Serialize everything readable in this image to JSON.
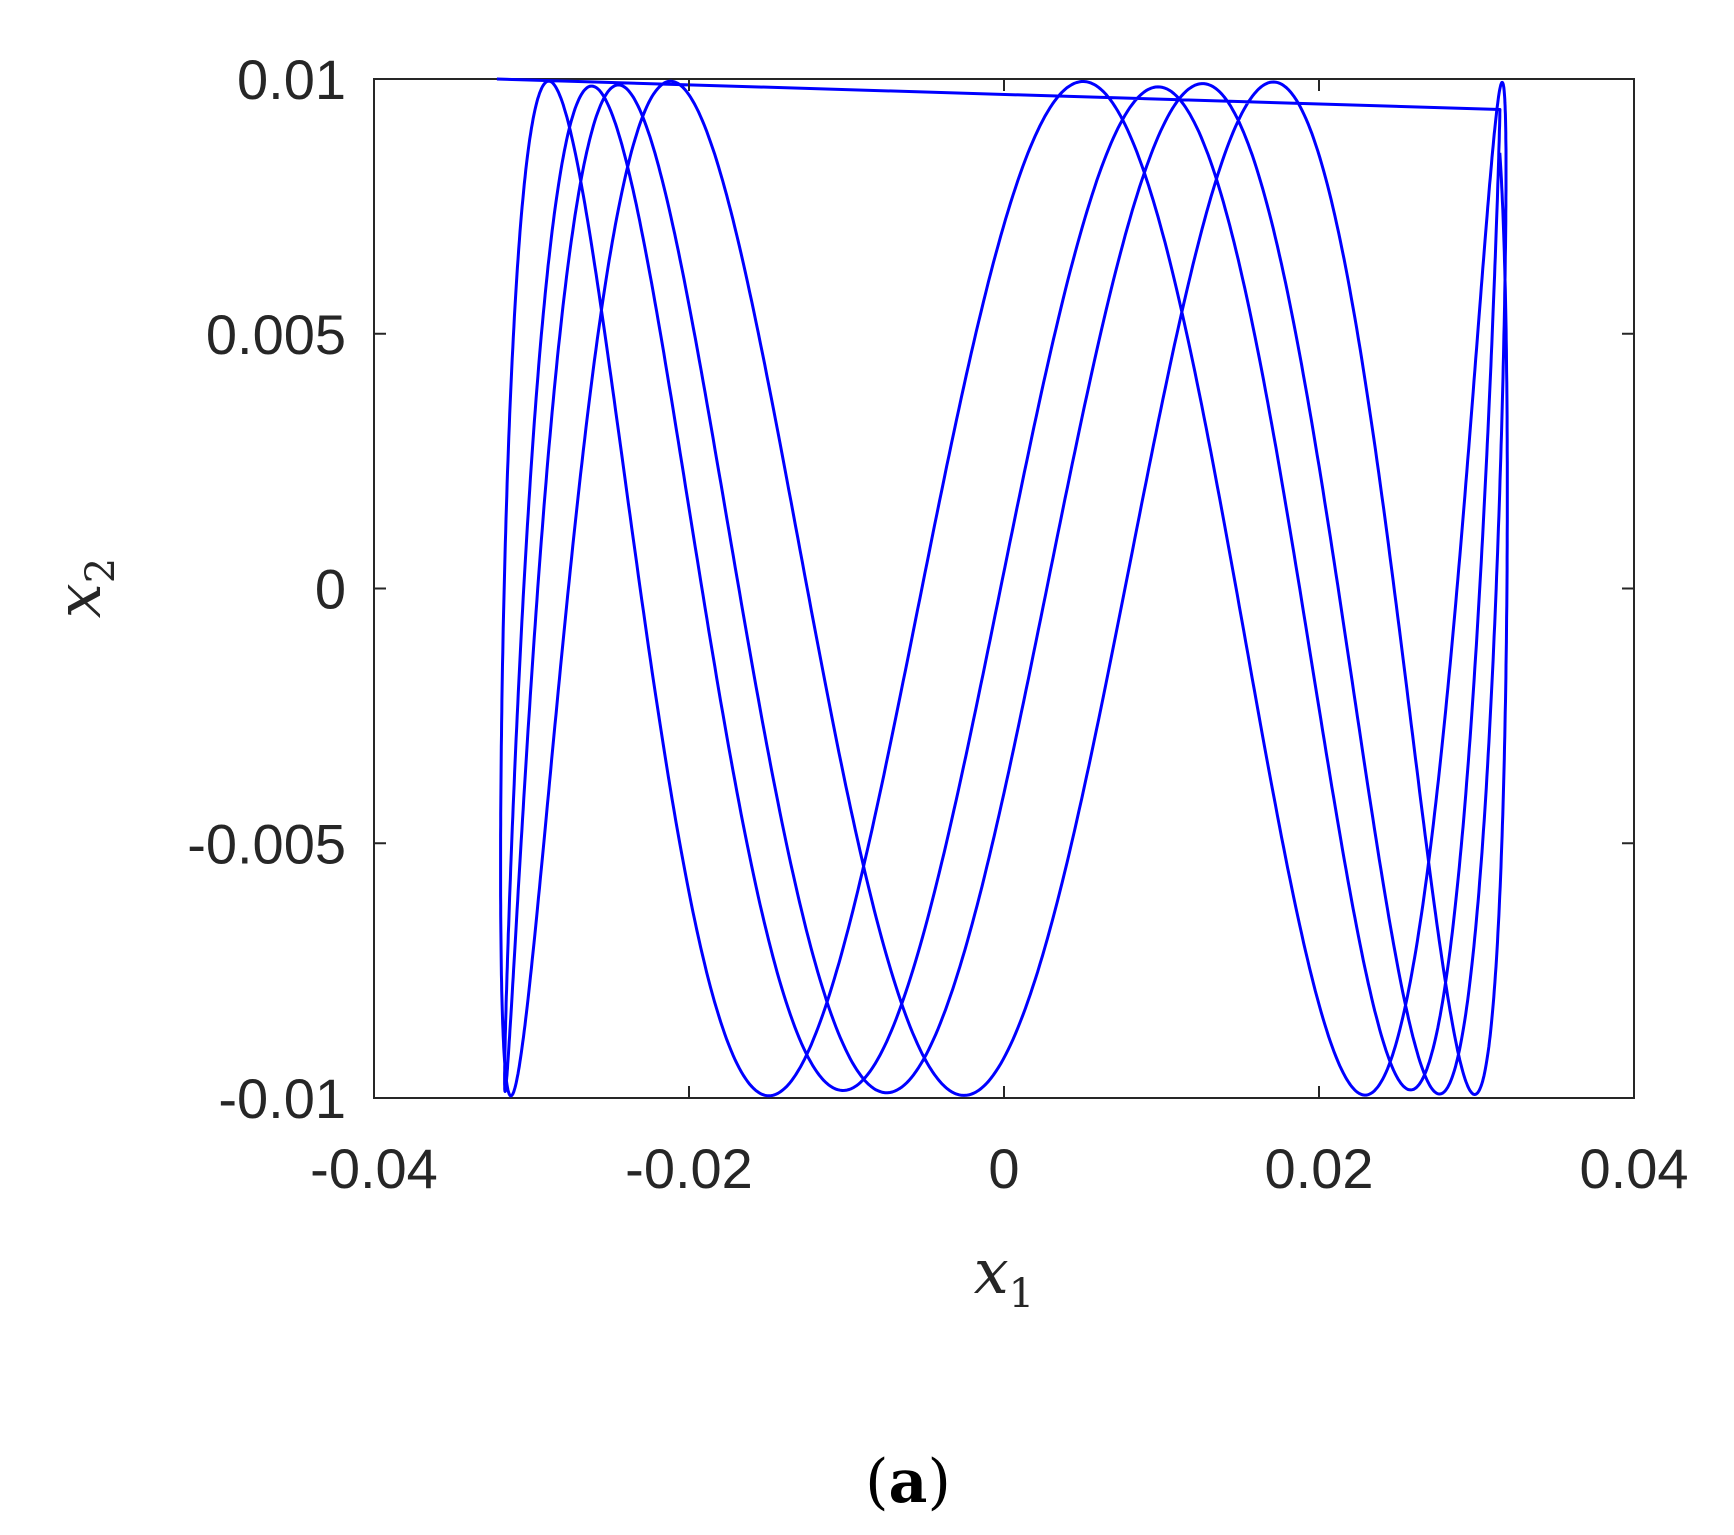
{
  "chart_data": {
    "type": "line",
    "xlabel": "x",
    "xlabel_subscript": "1",
    "ylabel": "x",
    "ylabel_subscript": "2",
    "xlim": [
      -0.04,
      0.04
    ],
    "ylim": [
      -0.01,
      0.01
    ],
    "x_ticks": [
      -0.04,
      -0.02,
      0,
      0.02,
      0.04
    ],
    "x_tick_labels": [
      "-0.04",
      "-0.02",
      "0",
      "0.02",
      "0.04"
    ],
    "y_ticks": [
      -0.01,
      -0.005,
      0,
      0.005,
      0.01
    ],
    "y_tick_labels": [
      "-0.01",
      "-0.005",
      "0",
      "0.005",
      "0.01"
    ],
    "grid": false,
    "box": true,
    "line_color": "#0000FF",
    "series": [
      {
        "description_points": "x1 vs x2 quasi-periodic Lissajous trajectory",
        "x_amplitude": 0.0315,
        "y_amplitude": 0.0099,
        "x": [
          -0.0322,
          -0.0315,
          -0.0295,
          -0.0262,
          -0.0218,
          -0.0165,
          -0.0105,
          -0.0042,
          0.0021,
          0.0083,
          0.0141,
          0.0192,
          0.0235,
          0.0268,
          0.0292,
          0.0305,
          0.031,
          0.0305,
          0.0292,
          0.0268,
          0.0235,
          0.0192,
          0.0141,
          0.0083,
          0.0021,
          -0.0042,
          -0.0105,
          -0.0165,
          -0.0218,
          -0.0262,
          -0.0295,
          -0.0315
        ],
        "y": [
          0.0099,
          0.0072,
          0.0002,
          -0.0074,
          -0.0099,
          -0.0052,
          0.0031,
          0.0093,
          0.0088,
          0.0021,
          -0.0063,
          -0.0099,
          -0.0066,
          0.0014,
          0.0084,
          0.0097,
          0.0041,
          -0.0046,
          -0.0098,
          -0.008,
          -0.0008,
          0.0072,
          0.0099,
          0.0053,
          -0.0031,
          -0.0093,
          -0.0088,
          -0.0021,
          0.0062,
          0.0099,
          0.0067,
          -0.0013
        ]
      }
    ]
  },
  "panel_label": {
    "open": "(",
    "letter": "a",
    "close": ")"
  }
}
